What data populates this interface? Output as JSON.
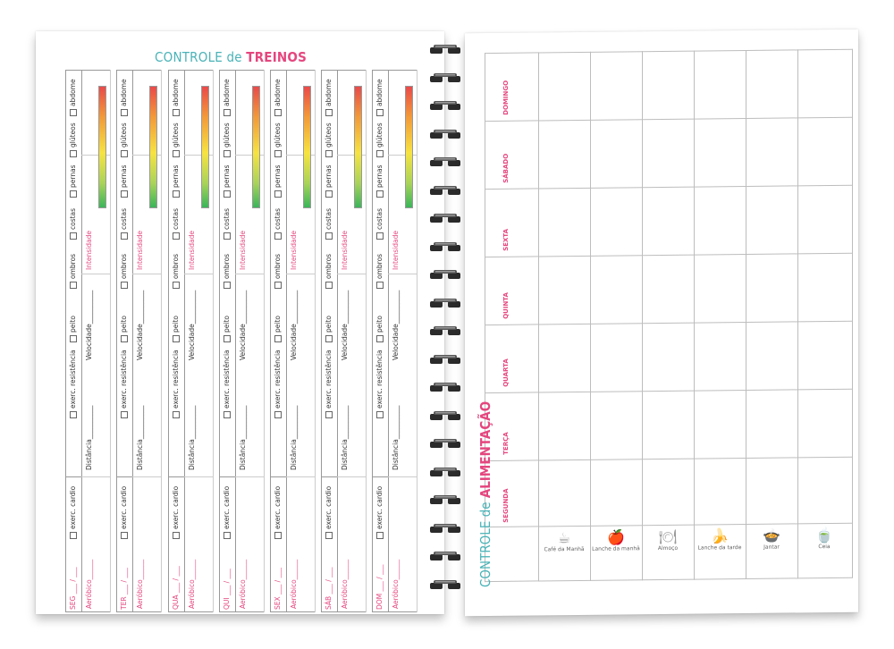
{
  "left": {
    "title_part1": "CONTROLE de",
    "title_part2": "TREINOS",
    "days": [
      {
        "date": "SEG ___ / ___"
      },
      {
        "date": "TER ___ / ___"
      },
      {
        "date": "QUA ___ / ___"
      },
      {
        "date": "QUI ___ / ___"
      },
      {
        "date": "SEX ___ / ___"
      },
      {
        "date": "SÁB ___ / ___"
      },
      {
        "date": "DOM ___ / ___"
      }
    ],
    "labels": {
      "cardio": "exerc. cardio",
      "resistencia": "exerc. resistência",
      "peito": "peito",
      "ombros": "ombros",
      "costas": "costas",
      "pernas": "pernas",
      "gluteos": "glúteos",
      "abdome": "abdome",
      "aerobico": "Aeróbico",
      "distancia": "Distância",
      "velocidade": "Velocidade",
      "intensidade": "Intensidade"
    }
  },
  "right": {
    "title_part1": "CONTROLE de",
    "title_part2": "ALIMENTAÇÃO",
    "days": [
      "SEGUNDA",
      "TERÇA",
      "QUARTA",
      "QUINTA",
      "SEXTA",
      "SÁBADO",
      "DOMINGO"
    ],
    "meals": [
      "Café da Manhã",
      "Lanche da manhã",
      "Almoço",
      "Lanche da tarde",
      "Jantar",
      "Ceia"
    ],
    "meal_icons": [
      "cup-icon",
      "apple-icon",
      "plate-icon",
      "banana-icon",
      "dish-icon",
      "teacup-icon"
    ]
  },
  "colors": {
    "accent_teal": "#4ab3b8",
    "accent_pink": "#e5467e"
  }
}
